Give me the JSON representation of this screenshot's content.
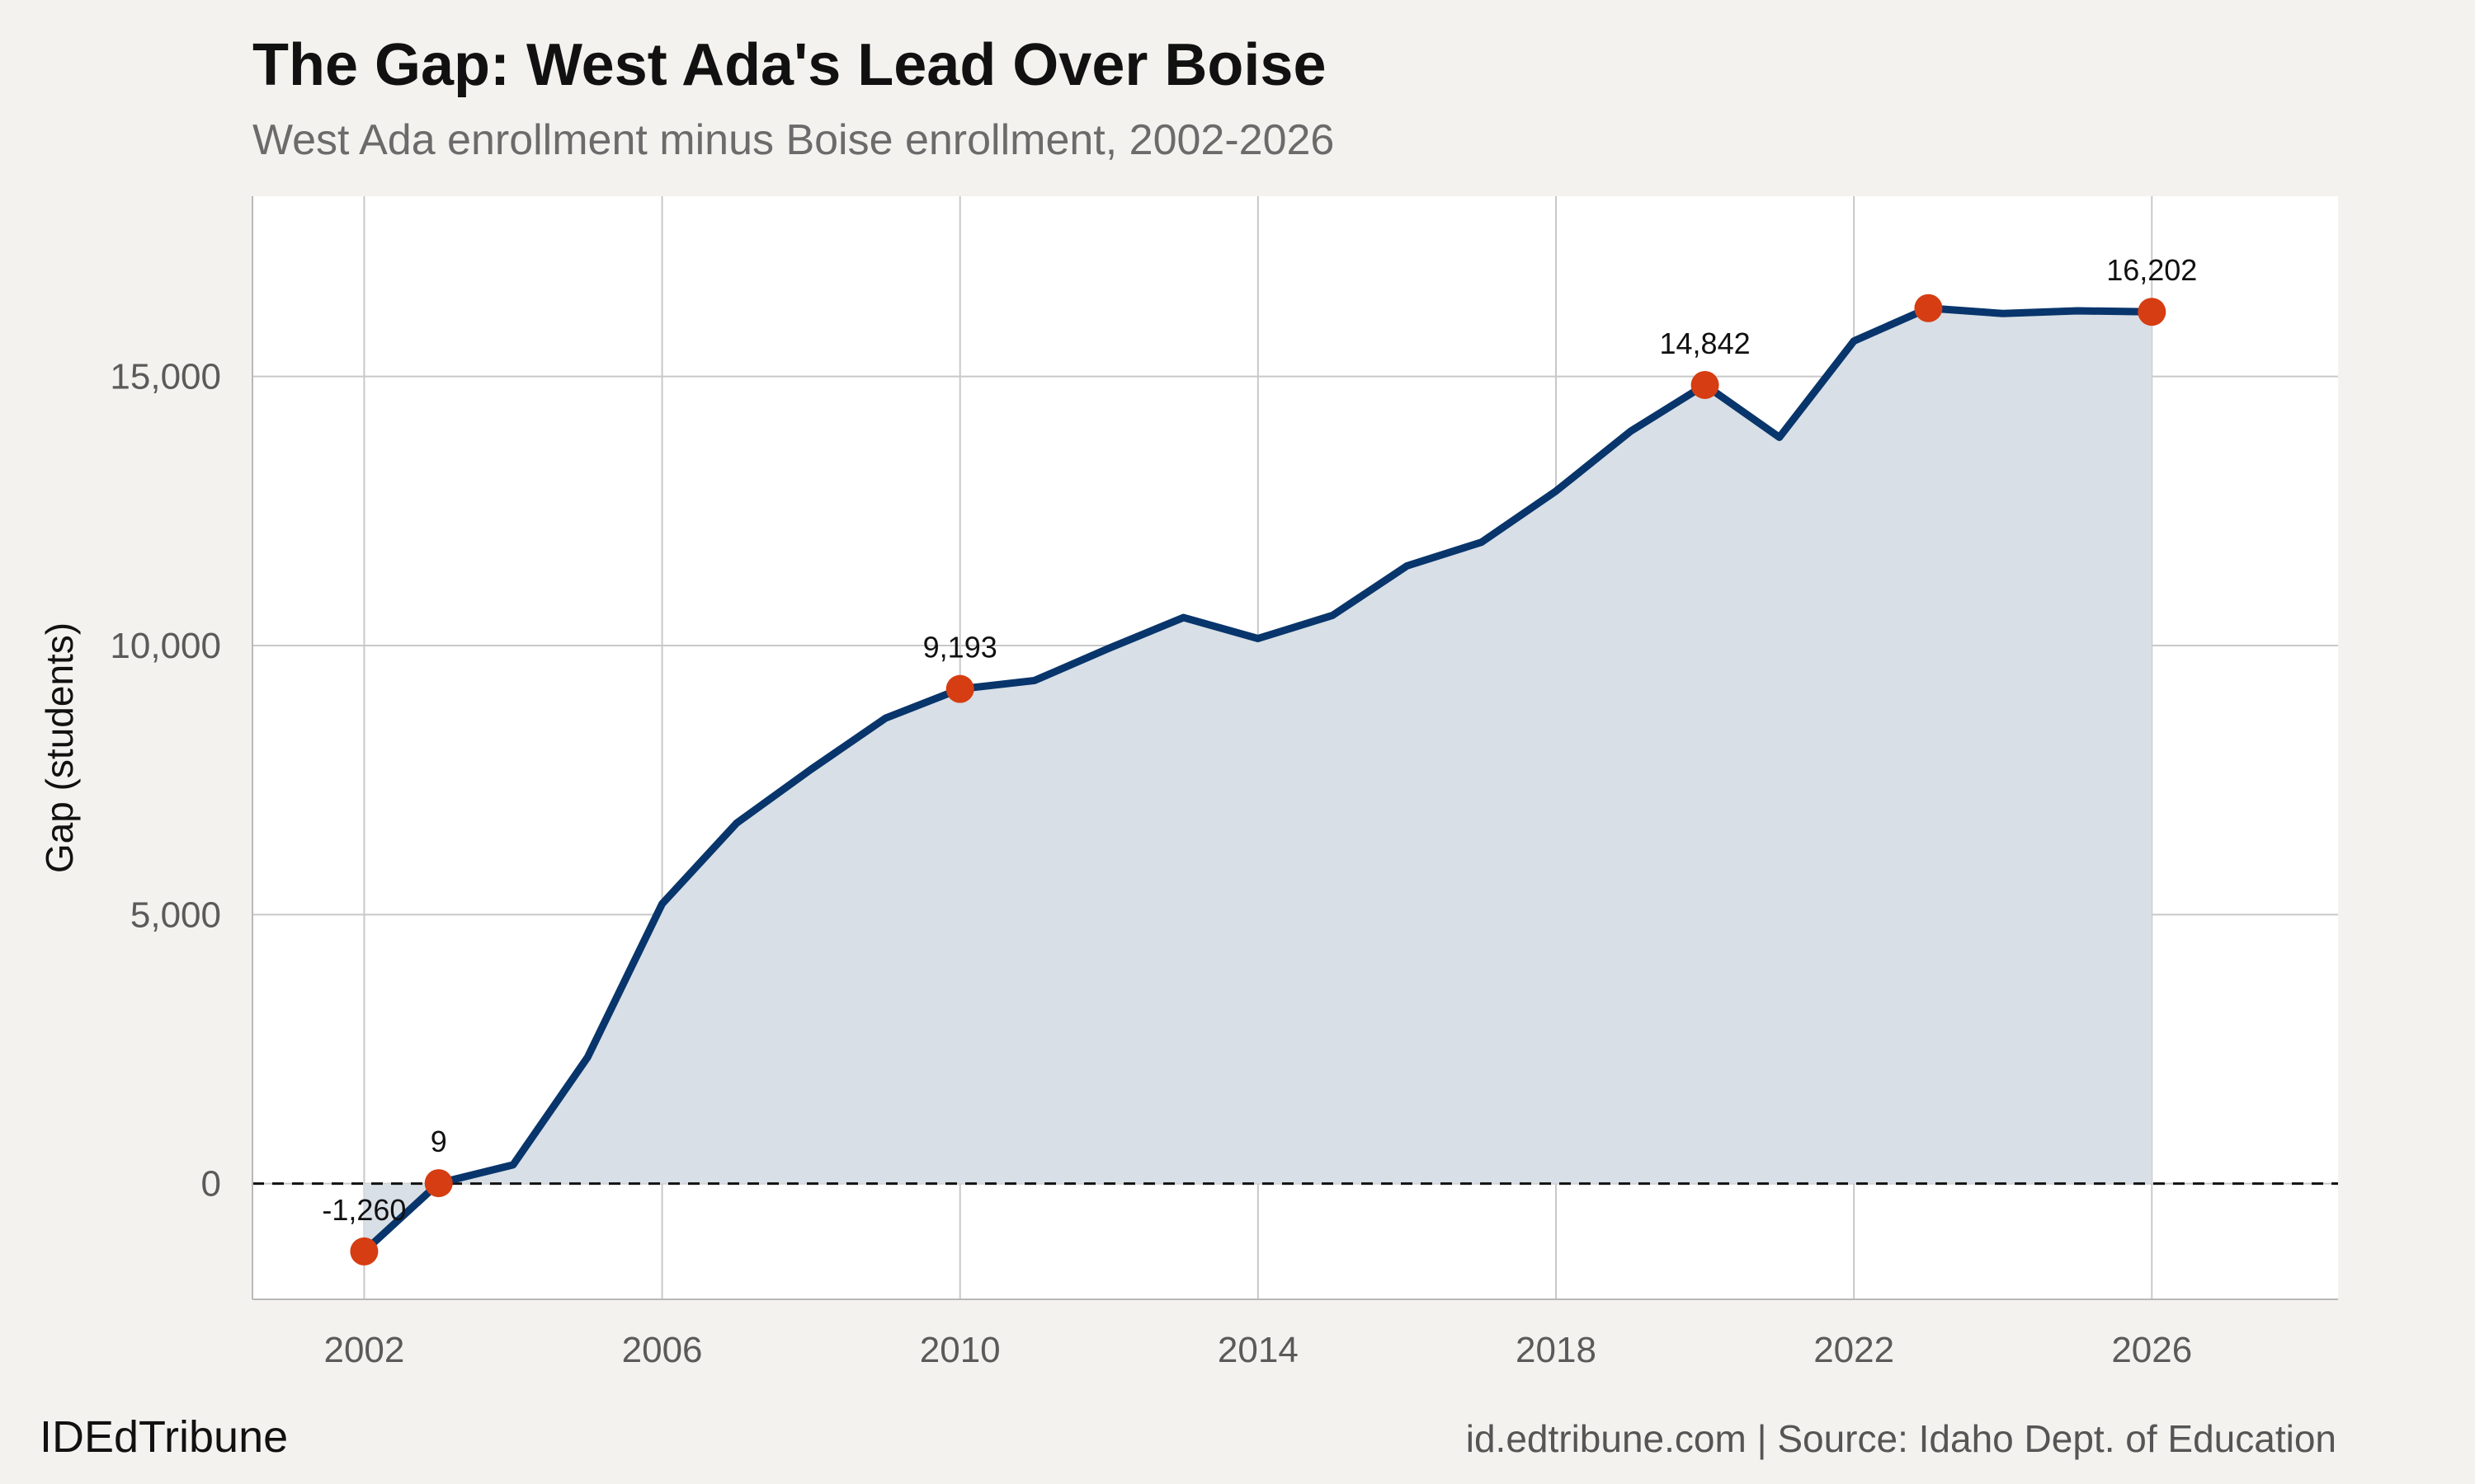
{
  "header": {
    "title": "The Gap: West Ada's Lead Over Boise",
    "subtitle": "West Ada enrollment minus Boise enrollment, 2002-2026"
  },
  "footer": {
    "brand": "IDEdTribune",
    "source": "id.edtribune.com | Source: Idaho Dept. of Education"
  },
  "colors": {
    "line": "#08356b",
    "area": "#d8dfe6",
    "highlight": "#d63d12",
    "grid": "#c8c8c8",
    "panel": "#ffffff",
    "background": "#f4f2ee"
  },
  "chart_data": {
    "type": "area",
    "title": "The Gap: West Ada's Lead Over Boise",
    "subtitle": "West Ada enrollment minus Boise enrollment, 2002-2026",
    "xlabel": "",
    "ylabel": "Gap (students)",
    "xlim": [
      2000.5,
      2028.5
    ],
    "ylim": [
      -2150,
      18350
    ],
    "x_ticks": [
      2002,
      2006,
      2010,
      2014,
      2018,
      2022,
      2026
    ],
    "y_ticks": [
      0,
      5000,
      10000,
      15000
    ],
    "y_tick_labels": [
      "0",
      "5,000",
      "10,000",
      "15,000"
    ],
    "reference_line": {
      "y": 0,
      "style": "dashed"
    },
    "grid": true,
    "series": [
      {
        "name": "Gap",
        "x": [
          2002,
          2003,
          2004,
          2005,
          2006,
          2007,
          2008,
          2009,
          2010,
          2011,
          2012,
          2013,
          2014,
          2015,
          2016,
          2017,
          2018,
          2019,
          2020,
          2021,
          2022,
          2023,
          2024,
          2025,
          2026
        ],
        "y": [
          -1260,
          9,
          350,
          2350,
          5200,
          6700,
          7700,
          8650,
          9193,
          9350,
          9950,
          10520,
          10130,
          10560,
          11480,
          11920,
          12870,
          13980,
          14842,
          13870,
          15660,
          16270,
          16170,
          16220,
          16202
        ]
      }
    ],
    "highlights": [
      {
        "x": 2002,
        "y": -1260,
        "label": "-1,260"
      },
      {
        "x": 2003,
        "y": 9,
        "label": "9"
      },
      {
        "x": 2010,
        "y": 9193,
        "label": "9,193"
      },
      {
        "x": 2020,
        "y": 14842,
        "label": "14,842"
      },
      {
        "x": 2023,
        "y": 16270,
        "label": ""
      },
      {
        "x": 2026,
        "y": 16202,
        "label": "16,202"
      }
    ]
  }
}
